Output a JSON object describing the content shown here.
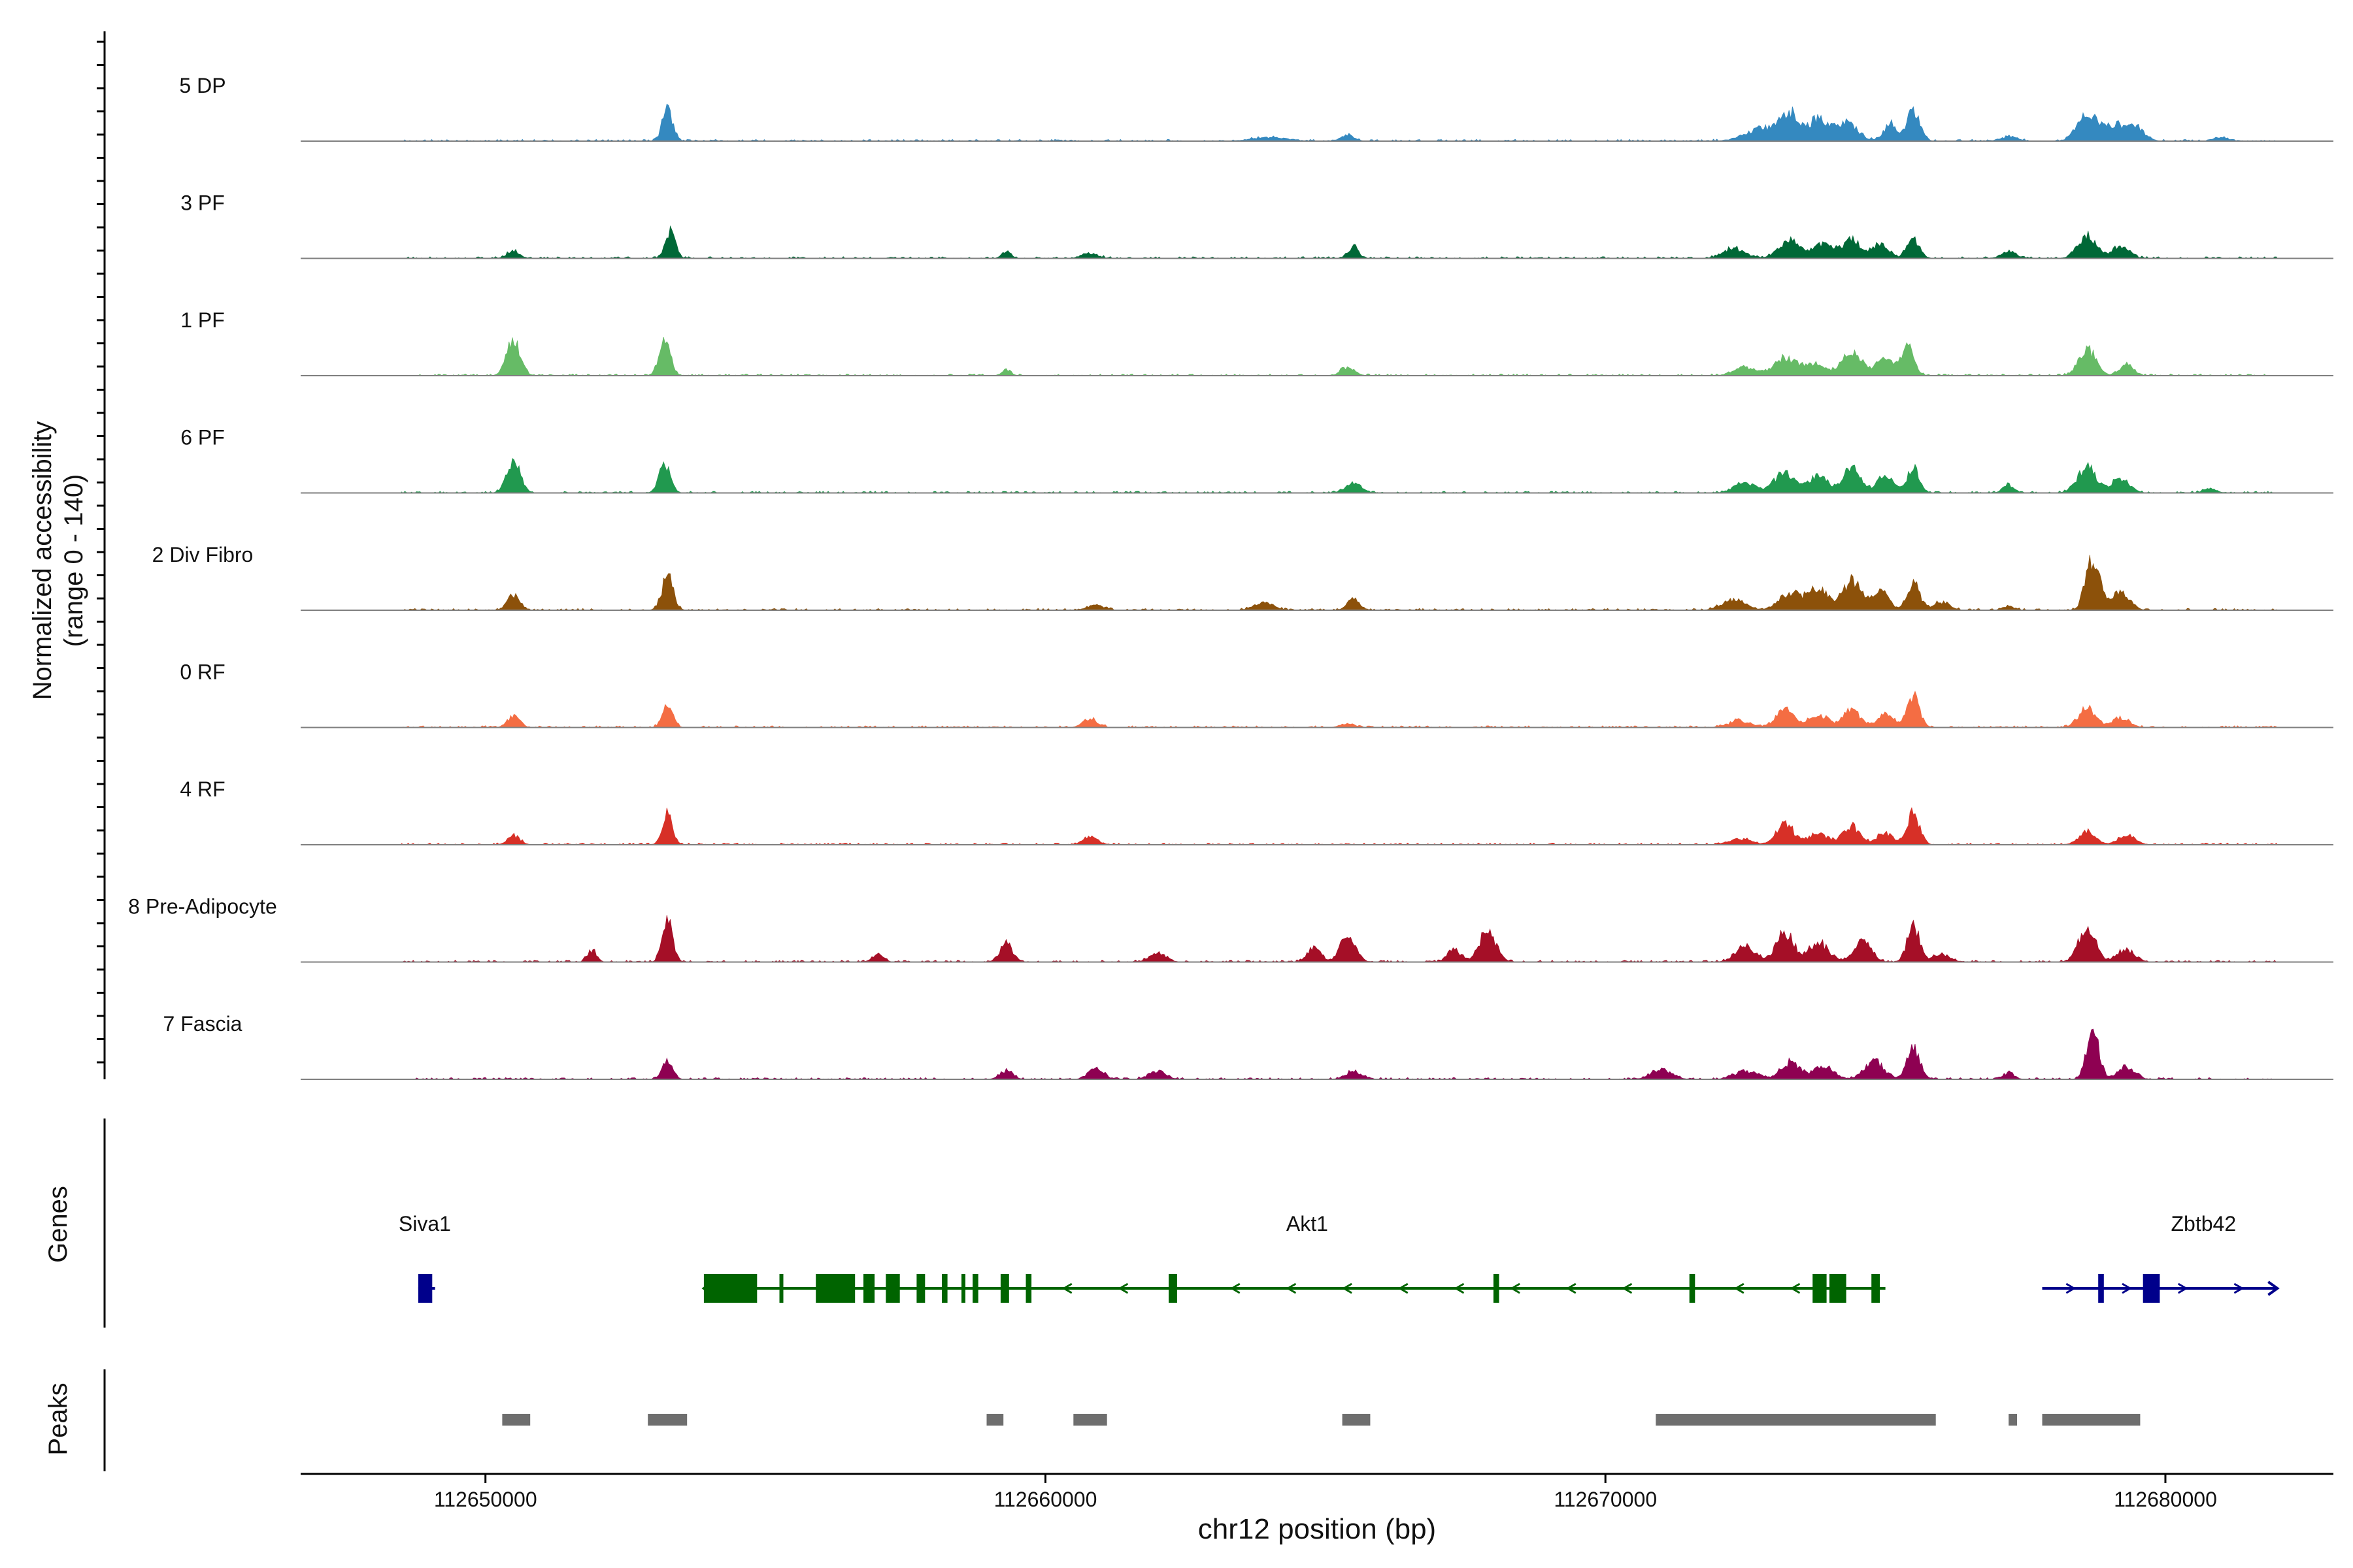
{
  "chart_data": {
    "type": "area",
    "title": "",
    "chromosome": "chr12",
    "xlabel": "chr12 position (bp)",
    "ylabel": "Normalized accessibility",
    "ylabel_sub": "(range 0 - 140)",
    "y_range": [
      0,
      140
    ],
    "x_range": [
      112646700,
      112683000
    ],
    "x_ticks": [
      112650000,
      112660000,
      112670000,
      112680000
    ],
    "x_tick_labels": [
      "112650000",
      "112660000",
      "112670000",
      "112680000"
    ],
    "track_start": 112648500,
    "track_end": 112682000,
    "genes_label": "Genes",
    "peaks_label": "Peaks",
    "series": [
      {
        "name": "5 DP",
        "color": "#3489c0",
        "seed": 11,
        "peaks": [
          [
            112653250,
            40,
            90
          ],
          [
            112664000,
            5,
            300
          ],
          [
            112672800,
            15,
            300
          ],
          [
            112673300,
            32,
            180
          ],
          [
            112673800,
            26,
            160
          ],
          [
            112674300,
            23,
            200
          ],
          [
            112675100,
            22,
            120
          ],
          [
            112675500,
            40,
            110
          ],
          [
            112677200,
            5,
            150
          ],
          [
            112678600,
            32,
            170
          ],
          [
            112679100,
            20,
            200
          ],
          [
            112679500,
            14,
            150
          ],
          [
            112665400,
            7,
            120
          ],
          [
            112681000,
            5,
            120
          ]
        ]
      },
      {
        "name": "3 PF",
        "color": "#006837",
        "seed": 23,
        "peaks": [
          [
            112650500,
            10,
            110
          ],
          [
            112653300,
            33,
            90
          ],
          [
            112659300,
            9,
            80
          ],
          [
            112660800,
            6,
            140
          ],
          [
            112665500,
            15,
            90
          ],
          [
            112673300,
            21,
            200
          ],
          [
            112673900,
            17,
            180
          ],
          [
            112674400,
            23,
            150
          ],
          [
            112674900,
            17,
            150
          ],
          [
            112675500,
            24,
            110
          ],
          [
            112672300,
            12,
            200
          ],
          [
            112677200,
            10,
            120
          ],
          [
            112678600,
            28,
            160
          ],
          [
            112679200,
            16,
            150
          ]
        ]
      },
      {
        "name": "1 PF",
        "color": "#66bb66",
        "seed": 37,
        "peaks": [
          [
            112650500,
            45,
            120
          ],
          [
            112653200,
            45,
            100
          ],
          [
            112659300,
            7,
            80
          ],
          [
            112665400,
            10,
            120
          ],
          [
            112673200,
            22,
            180
          ],
          [
            112673700,
            15,
            200
          ],
          [
            112674400,
            30,
            180
          ],
          [
            112675000,
            20,
            150
          ],
          [
            112675400,
            34,
            110
          ],
          [
            112672500,
            10,
            200
          ],
          [
            112678600,
            33,
            150
          ],
          [
            112679300,
            14,
            120
          ]
        ]
      },
      {
        "name": "6 PF",
        "color": "#21994f",
        "seed": 41,
        "peaks": [
          [
            112650500,
            38,
            120
          ],
          [
            112653200,
            36,
            100
          ],
          [
            112665500,
            12,
            140
          ],
          [
            112673200,
            25,
            180
          ],
          [
            112673800,
            20,
            180
          ],
          [
            112674400,
            30,
            150
          ],
          [
            112675000,
            20,
            150
          ],
          [
            112675500,
            30,
            110
          ],
          [
            112672500,
            12,
            200
          ],
          [
            112677200,
            10,
            100
          ],
          [
            112678600,
            32,
            170
          ],
          [
            112679200,
            18,
            150
          ],
          [
            112680800,
            5,
            120
          ]
        ]
      },
      {
        "name": "2 Div Fibro",
        "color": "#8c510a",
        "seed": 53,
        "peaks": [
          [
            112650500,
            18,
            110
          ],
          [
            112653250,
            42,
            100
          ],
          [
            112665500,
            14,
            110
          ],
          [
            112663900,
            9,
            180
          ],
          [
            112660900,
            6,
            150
          ],
          [
            112673300,
            20,
            200
          ],
          [
            112673800,
            26,
            180
          ],
          [
            112674400,
            36,
            160
          ],
          [
            112674900,
            24,
            150
          ],
          [
            112675500,
            35,
            110
          ],
          [
            112672300,
            14,
            200
          ],
          [
            112676000,
            10,
            150
          ],
          [
            112678700,
            66,
            120
          ],
          [
            112679200,
            22,
            160
          ],
          [
            112677200,
            5,
            100
          ]
        ]
      },
      {
        "name": "0 RF",
        "color": "#f46d43",
        "seed": 67,
        "peaks": [
          [
            112650500,
            14,
            110
          ],
          [
            112653250,
            30,
            90
          ],
          [
            112660800,
            10,
            130
          ],
          [
            112665400,
            5,
            120
          ],
          [
            112673200,
            24,
            150
          ],
          [
            112673800,
            16,
            180
          ],
          [
            112674400,
            22,
            150
          ],
          [
            112675000,
            16,
            150
          ],
          [
            112675500,
            38,
            110
          ],
          [
            112672400,
            8,
            200
          ],
          [
            112678600,
            24,
            150
          ],
          [
            112679200,
            12,
            150
          ]
        ]
      },
      {
        "name": "4 RF",
        "color": "#d73027",
        "seed": 79,
        "peaks": [
          [
            112650500,
            11,
            110
          ],
          [
            112653250,
            38,
            90
          ],
          [
            112660800,
            10,
            130
          ],
          [
            112673200,
            26,
            150
          ],
          [
            112673800,
            13,
            200
          ],
          [
            112674400,
            22,
            150
          ],
          [
            112675000,
            14,
            150
          ],
          [
            112675500,
            38,
            110
          ],
          [
            112672400,
            7,
            200
          ],
          [
            112678600,
            15,
            150
          ],
          [
            112679300,
            12,
            150
          ]
        ]
      },
      {
        "name": "8 Pre-Adipocyte",
        "color": "#a50f27",
        "seed": 83,
        "peaks": [
          [
            112653250,
            56,
            90
          ],
          [
            112659300,
            25,
            110
          ],
          [
            112665400,
            38,
            130
          ],
          [
            112664800,
            18,
            120
          ],
          [
            112667900,
            38,
            150
          ],
          [
            112667300,
            15,
            120
          ],
          [
            112673200,
            38,
            150
          ],
          [
            112673800,
            24,
            180
          ],
          [
            112674600,
            26,
            150
          ],
          [
            112675500,
            45,
            110
          ],
          [
            112672500,
            18,
            180
          ],
          [
            112676000,
            10,
            150
          ],
          [
            112678600,
            42,
            150
          ],
          [
            112679300,
            16,
            150
          ],
          [
            112651900,
            14,
            80
          ],
          [
            112657000,
            10,
            100
          ],
          [
            112662000,
            10,
            150
          ]
        ]
      },
      {
        "name": "7 Fascia",
        "color": "#8e0152",
        "seed": 97,
        "peaks": [
          [
            112653250,
            25,
            90
          ],
          [
            112659300,
            11,
            110
          ],
          [
            112660900,
            14,
            130
          ],
          [
            112662000,
            10,
            150
          ],
          [
            112665500,
            10,
            140
          ],
          [
            112671000,
            12,
            180
          ],
          [
            112673300,
            21,
            170
          ],
          [
            112673900,
            16,
            180
          ],
          [
            112674800,
            22,
            170
          ],
          [
            112675500,
            42,
            110
          ],
          [
            112672500,
            10,
            200
          ],
          [
            112678700,
            62,
            110
          ],
          [
            112679300,
            15,
            150
          ],
          [
            112677200,
            8,
            100
          ]
        ]
      }
    ],
    "genes": [
      {
        "name": "Siva1",
        "strand": "+",
        "color": "#00008b",
        "start": 112648800,
        "end": 112649100,
        "label_pos": 112648450,
        "exons": [
          [
            112648800,
            112649050
          ]
        ]
      },
      {
        "name": "Akt1",
        "strand": "-",
        "color": "#006400",
        "start": 112653900,
        "end": 112675000,
        "label_pos": 112664300,
        "exons": [
          [
            112653900,
            112654850
          ],
          [
            112655250,
            112655300
          ],
          [
            112655900,
            112656600
          ],
          [
            112656750,
            112656950
          ],
          [
            112657150,
            112657400
          ],
          [
            112657700,
            112657850
          ],
          [
            112658150,
            112658250
          ],
          [
            112658500,
            112658550
          ],
          [
            112658700,
            112658800
          ],
          [
            112659200,
            112659350
          ],
          [
            112659650,
            112659750
          ],
          [
            112662200,
            112662350
          ],
          [
            112668000,
            112668100
          ],
          [
            112671500,
            112671600
          ],
          [
            112673700,
            112673950
          ],
          [
            112674000,
            112674300
          ],
          [
            112674750,
            112674900
          ]
        ]
      },
      {
        "name": "Zbtb42",
        "strand": "+",
        "color": "#00008b",
        "start": 112677800,
        "end": 112682000,
        "label_pos": 112680100,
        "exons": [
          [
            112678800,
            112678900
          ],
          [
            112679600,
            112679900
          ]
        ]
      }
    ],
    "peaks_regions": [
      [
        112650300,
        112650800
      ],
      [
        112652900,
        112653600
      ],
      [
        112658950,
        112659250
      ],
      [
        112660500,
        112661100
      ],
      [
        112665300,
        112665800
      ],
      [
        112670900,
        112675900
      ],
      [
        112677200,
        112677350
      ],
      [
        112677800,
        112679550
      ]
    ]
  }
}
